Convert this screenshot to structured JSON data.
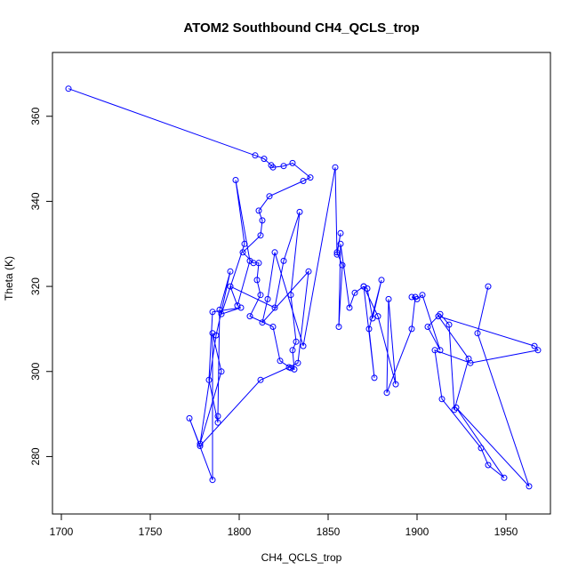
{
  "chart_data": {
    "type": "line",
    "title": "ATOM2 Southbound CH4_QCLS_trop",
    "xlabel": "CH4_QCLS_trop",
    "ylabel": "Theta (K)",
    "xlim": [
      1695,
      1975
    ],
    "ylim": [
      266.5,
      375
    ],
    "xticks": [
      1700,
      1750,
      1800,
      1850,
      1900,
      1950
    ],
    "yticks": [
      280,
      300,
      320,
      340,
      360
    ],
    "grid": false,
    "legend": "none",
    "series": [
      {
        "color": "#0000ff",
        "marker": "open-circle",
        "points": [
          [
            1704,
            366.5
          ],
          [
            1809,
            350.8
          ],
          [
            1814,
            350.0
          ],
          [
            1818,
            348.5
          ],
          [
            1819,
            348.0
          ],
          [
            1825,
            348.3
          ],
          [
            1830,
            349.0
          ],
          [
            1840,
            345.6
          ],
          [
            1836,
            344.8
          ],
          [
            1817,
            341.2
          ],
          [
            1811,
            337.8
          ],
          [
            1813,
            335.5
          ],
          [
            1812,
            332.0
          ],
          [
            1802,
            328.0
          ],
          [
            1808,
            325.5
          ],
          [
            1811,
            325.5
          ],
          [
            1810,
            321.5
          ],
          [
            1812,
            318.0
          ],
          [
            1806,
            313.0
          ],
          [
            1819,
            310.5
          ],
          [
            1823,
            302.5
          ],
          [
            1829,
            300.8
          ],
          [
            1831,
            300.5
          ],
          [
            1830,
            305.0
          ],
          [
            1832,
            307.0
          ],
          [
            1829,
            318.0
          ],
          [
            1834,
            337.5
          ],
          [
            1825,
            326.0
          ],
          [
            1820,
            315.0
          ],
          [
            1795,
            320.0
          ],
          [
            1799,
            315.5
          ],
          [
            1806,
            326.0
          ],
          [
            1798,
            345.0
          ],
          [
            1803,
            330.0
          ],
          [
            1790,
            313.5
          ],
          [
            1801,
            315.0
          ],
          [
            1785,
            314.0
          ],
          [
            1783,
            298.0
          ],
          [
            1788,
            288.0
          ],
          [
            1788,
            289.5
          ],
          [
            1789,
            314.5
          ],
          [
            1795,
            323.5
          ],
          [
            1787,
            308.5
          ],
          [
            1778,
            283.0
          ],
          [
            1790,
            300.0
          ],
          [
            1785,
            309.0
          ],
          [
            1785,
            274.5
          ],
          [
            1772,
            289.0
          ],
          [
            1778,
            282.5
          ],
          [
            1812,
            298.0
          ],
          [
            1828,
            301.0
          ],
          [
            1833,
            302.0
          ],
          [
            1839,
            323.5
          ],
          [
            1813,
            311.5
          ],
          [
            1816,
            317.0
          ],
          [
            1820,
            328.0
          ],
          [
            1836,
            306.0
          ],
          [
            1854,
            348.0
          ],
          [
            1855,
            327.5
          ],
          [
            1857,
            332.5
          ],
          [
            1855,
            328.0
          ],
          [
            1858,
            325.0
          ],
          [
            1856,
            310.5
          ],
          [
            1857,
            330.0
          ],
          [
            1862,
            315.0
          ],
          [
            1865,
            318.5
          ],
          [
            1870,
            320.0
          ],
          [
            1872,
            319.5
          ],
          [
            1875,
            312.5
          ],
          [
            1880,
            321.5
          ],
          [
            1873,
            310.0
          ],
          [
            1876,
            298.5
          ],
          [
            1870,
            320.0
          ],
          [
            1878,
            313.0
          ],
          [
            1888,
            297.0
          ],
          [
            1884,
            317.0
          ],
          [
            1883,
            295.0
          ],
          [
            1897,
            310.0
          ],
          [
            1899,
            317.5
          ],
          [
            1897,
            317.5
          ],
          [
            1900,
            317.0
          ],
          [
            1903,
            318.0
          ],
          [
            1913,
            305.0
          ],
          [
            1906,
            310.5
          ],
          [
            1913,
            313.5
          ],
          [
            1918,
            311.0
          ],
          [
            1921,
            291.0
          ],
          [
            1929,
            303.0
          ],
          [
            1912,
            313.0
          ],
          [
            1966,
            306.0
          ],
          [
            1968,
            305.0
          ],
          [
            1930,
            302.0
          ],
          [
            1910,
            305.0
          ],
          [
            1914,
            293.5
          ],
          [
            1936,
            282.0
          ],
          [
            1940,
            278.0
          ],
          [
            1949,
            275.0
          ],
          [
            1922,
            291.5
          ],
          [
            1963,
            273.0
          ],
          [
            1934,
            309.0
          ],
          [
            1940,
            320.0
          ]
        ]
      }
    ]
  }
}
